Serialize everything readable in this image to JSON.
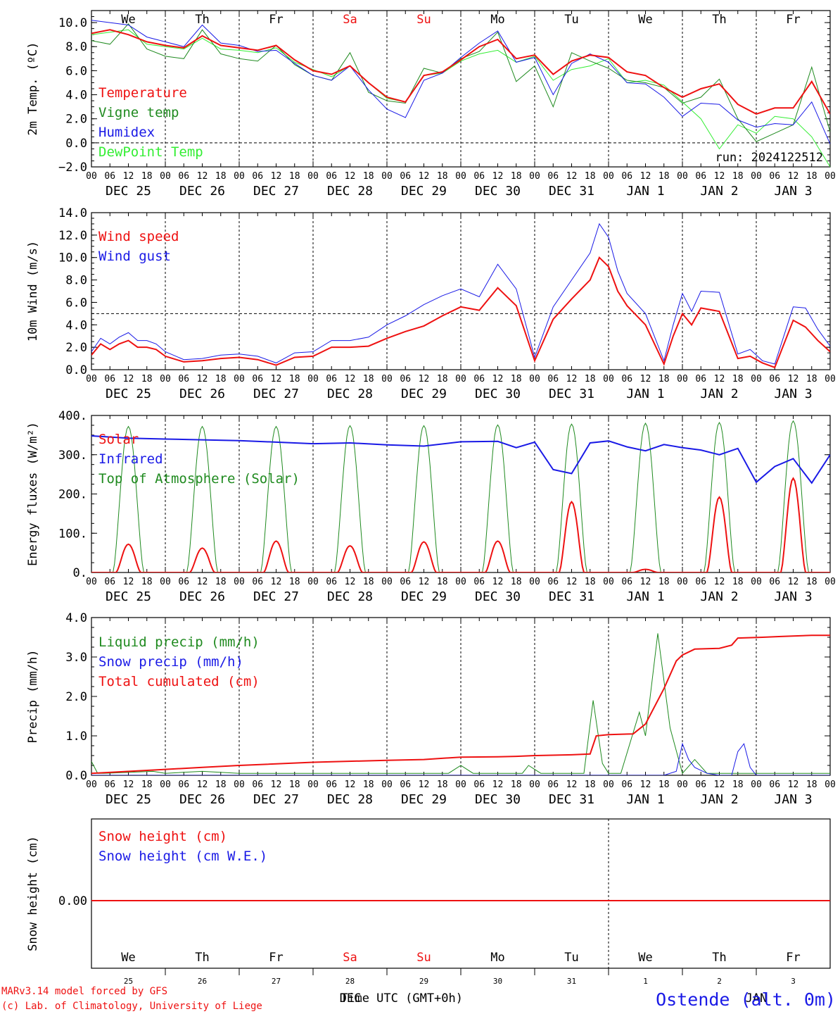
{
  "colors": {
    "red": "#ee1111",
    "darkgreen": "#1f8a1f",
    "blue": "#1a1ae6",
    "lightgreen": "#33ee33",
    "grid": "#000000"
  },
  "run_label": "run: 2024122512",
  "footer": {
    "model_line": "MARv3.14 model forced by GFS",
    "lab_line": "(c) Lab. of Climatology, University of Liege",
    "time_label": "Time UTC (GMT+0h)",
    "month_dec": "DEC",
    "month_jan": "JAN",
    "station": "Ostende (alt. 0m)"
  },
  "axis_common": {
    "hour_ticks": [
      "00",
      "06",
      "12",
      "18",
      "00",
      "06",
      "12",
      "18",
      "00",
      "06",
      "12",
      "18",
      "00",
      "06",
      "12",
      "18",
      "00",
      "06",
      "12",
      "18",
      "00",
      "06",
      "12",
      "18",
      "00",
      "06",
      "12",
      "18",
      "00",
      "06",
      "12",
      "18",
      "00",
      "06",
      "12",
      "18",
      "00",
      "06",
      "12",
      "18",
      "00"
    ],
    "date_labels": [
      "DEC 25",
      "DEC 26",
      "DEC 27",
      "DEC 28",
      "DEC 29",
      "DEC 30",
      "DEC 31",
      "JAN  1",
      "JAN  2",
      "JAN  3"
    ],
    "weekday_labels": [
      "We",
      "Th",
      "Fr",
      "Sa",
      "Su",
      "Mo",
      "Tu",
      "We",
      "Th",
      "Fr"
    ],
    "weekend_indices": [
      3,
      4
    ],
    "day_numbers": [
      "25",
      "26",
      "27",
      "28",
      "29",
      "30",
      "31",
      "1",
      "2",
      "3"
    ]
  },
  "chart_data": [
    {
      "id": "temperature",
      "type": "line",
      "ylabel": "2m Temp. (ºC)",
      "ylim": [
        -2,
        11
      ],
      "yticks": [
        "10.0",
        "8.0",
        "6.0",
        "4.0",
        "2.0",
        "0.0",
        "−2.0"
      ],
      "ytick_values": [
        10,
        8,
        6,
        4,
        2,
        0,
        -2
      ],
      "ref_line": 0,
      "x_unit": "hours since DEC 25 00 UTC",
      "series": [
        {
          "name": "Temperature",
          "color": "#ee1111",
          "width": 2,
          "x": [
            0,
            6,
            12,
            18,
            24,
            30,
            36,
            42,
            48,
            54,
            60,
            66,
            72,
            78,
            84,
            90,
            96,
            102,
            108,
            114,
            120,
            126,
            132,
            138,
            144,
            150,
            156,
            162,
            168,
            174,
            180,
            186,
            192,
            198,
            204,
            210,
            216,
            222,
            228,
            234,
            240
          ],
          "values": [
            9.1,
            9.4,
            9.0,
            8.4,
            8.1,
            7.9,
            8.9,
            8.1,
            7.9,
            7.7,
            8.1,
            6.9,
            6.0,
            5.7,
            6.4,
            5.0,
            3.8,
            3.4,
            5.6,
            5.9,
            6.9,
            8.0,
            8.6,
            7.0,
            7.3,
            5.7,
            6.8,
            7.3,
            7.1,
            5.9,
            5.6,
            4.6,
            3.8,
            4.5,
            4.9,
            3.2,
            2.4,
            2.9,
            2.9,
            5.1,
            2.4
          ]
        },
        {
          "name": "Vigne temp",
          "color": "#1f8a1f",
          "width": 1,
          "x": [
            0,
            6,
            12,
            18,
            24,
            30,
            36,
            42,
            48,
            54,
            60,
            66,
            72,
            78,
            84,
            90,
            96,
            102,
            108,
            114,
            120,
            126,
            132,
            138,
            144,
            150,
            156,
            162,
            168,
            174,
            180,
            186,
            192,
            198,
            204,
            210,
            216,
            222,
            228,
            234,
            240
          ],
          "values": [
            8.5,
            8.2,
            9.9,
            7.8,
            7.2,
            7.0,
            9.4,
            7.4,
            7.0,
            6.8,
            8.1,
            6.5,
            5.6,
            5.2,
            7.5,
            4.2,
            3.5,
            3.3,
            6.2,
            5.8,
            7.0,
            7.6,
            9.2,
            5.1,
            6.4,
            3.0,
            7.5,
            6.8,
            6.2,
            5.2,
            5.0,
            4.6,
            3.3,
            3.8,
            5.3,
            2.0,
            0.1,
            0.8,
            1.5,
            6.3,
            0.9
          ]
        },
        {
          "name": "Humidex",
          "color": "#1a1ae6",
          "width": 1,
          "x": [
            0,
            6,
            12,
            18,
            24,
            30,
            36,
            42,
            48,
            54,
            60,
            66,
            72,
            78,
            84,
            90,
            96,
            102,
            108,
            114,
            120,
            126,
            132,
            138,
            144,
            150,
            156,
            162,
            168,
            174,
            180,
            186,
            192,
            198,
            204,
            210,
            216,
            222,
            228,
            234,
            240
          ],
          "values": [
            10.2,
            10.0,
            9.8,
            8.8,
            8.4,
            8.0,
            9.8,
            8.3,
            8.1,
            7.6,
            7.7,
            6.6,
            5.6,
            5.2,
            6.4,
            4.4,
            2.8,
            2.1,
            5.2,
            5.8,
            7.1,
            8.3,
            9.3,
            6.7,
            7.1,
            4.0,
            6.6,
            7.4,
            6.7,
            5.0,
            4.9,
            3.8,
            2.2,
            3.3,
            3.2,
            1.9,
            1.3,
            1.6,
            1.5,
            3.4,
            -0.1
          ]
        },
        {
          "name": "DewPoint Temp",
          "color": "#33ee33",
          "width": 1,
          "x": [
            0,
            6,
            12,
            18,
            24,
            30,
            36,
            42,
            48,
            54,
            60,
            66,
            72,
            78,
            84,
            90,
            96,
            102,
            108,
            114,
            120,
            126,
            132,
            138,
            144,
            150,
            156,
            162,
            168,
            174,
            180,
            186,
            192,
            198,
            204,
            210,
            216,
            222,
            228,
            234,
            240
          ],
          "values": [
            9.0,
            9.2,
            9.4,
            8.2,
            8.0,
            7.8,
            8.7,
            7.8,
            7.7,
            7.5,
            7.9,
            6.7,
            6.1,
            5.5,
            6.4,
            5.0,
            3.7,
            3.4,
            5.6,
            5.8,
            6.8,
            7.4,
            7.7,
            6.7,
            7.2,
            5.2,
            6.1,
            6.4,
            7.0,
            5.0,
            5.2,
            4.8,
            3.4,
            2.0,
            -0.5,
            1.5,
            0.8,
            2.2,
            2.0,
            0.5,
            -2.0
          ]
        }
      ]
    },
    {
      "id": "wind",
      "type": "line",
      "ylabel": "10m Wind (m/s)",
      "ylim": [
        0,
        14
      ],
      "yticks": [
        "14.0",
        "12.0",
        "10.0",
        "8.0",
        "6.0",
        "4.0",
        "2.0",
        "0.0"
      ],
      "ytick_values": [
        14,
        12,
        10,
        8,
        6,
        4,
        2,
        0
      ],
      "ref_line": 5,
      "series": [
        {
          "name": "Wind speed",
          "color": "#ee1111",
          "width": 2,
          "x": [
            0,
            3,
            6,
            9,
            12,
            15,
            18,
            21,
            24,
            30,
            36,
            42,
            48,
            54,
            60,
            66,
            72,
            78,
            84,
            90,
            96,
            102,
            108,
            114,
            120,
            126,
            132,
            138,
            144,
            150,
            156,
            162,
            165,
            168,
            171,
            174,
            180,
            186,
            189,
            192,
            195,
            198,
            204,
            210,
            214,
            218,
            222,
            228,
            232,
            236,
            240
          ],
          "values": [
            1.3,
            2.3,
            1.8,
            2.3,
            2.6,
            2.0,
            2.0,
            1.8,
            1.2,
            0.7,
            0.8,
            1.0,
            1.1,
            0.9,
            0.4,
            1.1,
            1.2,
            2.0,
            2.0,
            2.1,
            2.8,
            3.4,
            3.9,
            4.8,
            5.6,
            5.3,
            7.3,
            5.7,
            0.8,
            4.5,
            6.3,
            8.0,
            10.0,
            9.2,
            7.0,
            5.7,
            4.0,
            0.5,
            3.0,
            5.0,
            4.0,
            5.5,
            5.2,
            1.0,
            1.2,
            0.6,
            0.2,
            4.4,
            3.8,
            2.6,
            1.6
          ]
        },
        {
          "name": "Wind gust",
          "color": "#1a1ae6",
          "width": 1,
          "x": [
            0,
            3,
            6,
            9,
            12,
            15,
            18,
            21,
            24,
            30,
            36,
            42,
            48,
            54,
            60,
            66,
            72,
            78,
            84,
            90,
            96,
            102,
            108,
            114,
            120,
            126,
            132,
            138,
            144,
            150,
            156,
            162,
            165,
            168,
            171,
            174,
            180,
            186,
            189,
            192,
            195,
            198,
            204,
            210,
            214,
            218,
            222,
            228,
            232,
            236,
            240
          ],
          "values": [
            1.6,
            2.8,
            2.3,
            2.9,
            3.3,
            2.6,
            2.6,
            2.3,
            1.6,
            0.9,
            1.0,
            1.3,
            1.4,
            1.2,
            0.6,
            1.5,
            1.6,
            2.6,
            2.6,
            2.9,
            4.0,
            4.8,
            5.8,
            6.6,
            7.2,
            6.5,
            9.4,
            7.2,
            1.1,
            5.6,
            8.0,
            10.4,
            13.0,
            11.8,
            8.8,
            6.8,
            5.0,
            0.8,
            4.0,
            6.8,
            5.2,
            7.0,
            6.9,
            1.4,
            1.8,
            0.8,
            0.5,
            5.6,
            5.5,
            3.6,
            2.1
          ]
        }
      ]
    },
    {
      "id": "energy",
      "type": "line",
      "ylabel": "Energy fluxes (W/m²)",
      "ylim": [
        0,
        400
      ],
      "yticks": [
        "400.",
        "300.",
        "200.",
        "100.",
        "0."
      ],
      "ytick_values": [
        400,
        300,
        200,
        100,
        0
      ],
      "series": [
        {
          "name": "Solar",
          "color": "#ee1111",
          "width": 2,
          "peaks": [
            72,
            62,
            80,
            68,
            78,
            80,
            180,
            8,
            192,
            240
          ]
        },
        {
          "name": "Infrared",
          "color": "#1a1ae6",
          "width": 2,
          "x": [
            0,
            12,
            24,
            36,
            48,
            60,
            72,
            84,
            96,
            108,
            120,
            132,
            138,
            144,
            150,
            156,
            162,
            168,
            174,
            180,
            186,
            192,
            198,
            204,
            210,
            216,
            222,
            228,
            234,
            240
          ],
          "values": [
            348,
            342,
            340,
            338,
            336,
            332,
            328,
            330,
            325,
            322,
            333,
            334,
            318,
            332,
            262,
            252,
            330,
            335,
            320,
            310,
            326,
            318,
            312,
            300,
            316,
            230,
            270,
            290,
            228,
            300
          ]
        },
        {
          "name": "Top of Atmosphere (Solar)",
          "color": "#1f8a1f",
          "width": 1,
          "peaks": [
            372,
            372,
            372,
            374,
            374,
            376,
            378,
            380,
            382,
            386
          ]
        }
      ]
    },
    {
      "id": "precip",
      "type": "line",
      "ylabel": "Precip (mm/h)",
      "ylim": [
        0,
        4
      ],
      "yticks": [
        "4.0",
        "3.0",
        "2.0",
        "1.0",
        "0.0"
      ],
      "ytick_values": [
        4,
        3,
        2,
        1,
        0
      ],
      "series": [
        {
          "name": "Liquid precip (mm/h)",
          "color": "#1f8a1f",
          "width": 1,
          "x": [
            0,
            2,
            4,
            20,
            24,
            36,
            48,
            60,
            72,
            108,
            116,
            120,
            124,
            140,
            142,
            146,
            160,
            163,
            166,
            168,
            172,
            178,
            180,
            184,
            188,
            192,
            196,
            200,
            204,
            210,
            216,
            224,
            232,
            236,
            240
          ],
          "values": [
            0.35,
            0.05,
            0.05,
            0.1,
            0.05,
            0.1,
            0.05,
            0.05,
            0.05,
            0.05,
            0.05,
            0.25,
            0.05,
            0.05,
            0.25,
            0.05,
            0.05,
            1.9,
            0.3,
            0.05,
            0.05,
            1.6,
            1.0,
            3.6,
            1.2,
            0.05,
            0.4,
            0.05,
            0.05,
            0.05,
            0.05,
            0.05,
            0.05,
            0.05,
            0.05
          ]
        },
        {
          "name": "Snow precip (mm/h)",
          "color": "#1a1ae6",
          "width": 1,
          "x": [
            0,
            186,
            190,
            192,
            194,
            196,
            200,
            204,
            208,
            210,
            212,
            214,
            216,
            240
          ],
          "values": [
            0,
            0,
            0.1,
            0.8,
            0.4,
            0.2,
            0.05,
            0,
            0,
            0.6,
            0.8,
            0.2,
            0,
            0
          ]
        },
        {
          "name": "Total cumulated (cm)",
          "color": "#ee1111",
          "width": 2,
          "x": [
            0,
            24,
            36,
            48,
            72,
            96,
            108,
            120,
            132,
            138,
            144,
            156,
            162,
            164,
            168,
            176,
            180,
            186,
            190,
            192,
            196,
            204,
            208,
            210,
            218,
            224,
            234,
            240
          ],
          "values": [
            0.05,
            0.15,
            0.2,
            0.25,
            0.33,
            0.38,
            0.4,
            0.46,
            0.47,
            0.48,
            0.5,
            0.52,
            0.54,
            1.0,
            1.03,
            1.05,
            1.3,
            2.2,
            2.9,
            3.05,
            3.2,
            3.22,
            3.3,
            3.48,
            3.5,
            3.52,
            3.55,
            3.55
          ]
        }
      ]
    },
    {
      "id": "snow",
      "type": "line",
      "ylabel": "Snow height (cm)",
      "yticks": [
        "0.00"
      ],
      "ytick_values": [
        0
      ],
      "series": [
        {
          "name": "Snow height (cm)",
          "color": "#ee1111",
          "width": 2,
          "x": [
            0,
            240
          ],
          "values": [
            0,
            0
          ]
        },
        {
          "name": "Snow height (cm W.E.)",
          "color": "#1a1ae6",
          "width": 1,
          "x": [
            0,
            240
          ],
          "values": [
            0,
            0
          ]
        }
      ]
    }
  ]
}
